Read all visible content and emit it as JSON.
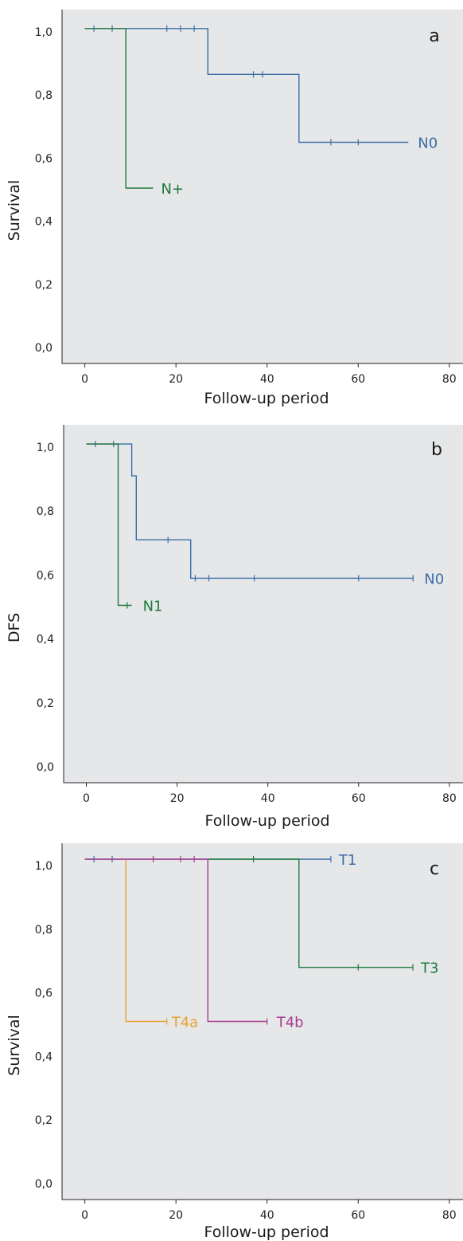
{
  "chart_data": [
    {
      "type": "line",
      "style": "kaplan-meier step",
      "panel_label": "a",
      "xlabel": "Follow-up period",
      "ylabel": "Survival",
      "xlim": [
        -5,
        83
      ],
      "ylim": [
        -0.05,
        1.07
      ],
      "xticks": [
        "0",
        "20",
        "40",
        "60",
        "80"
      ],
      "yticks": [
        "0,0",
        "0,2",
        "0,4",
        "0,6",
        "0,8",
        "1,0"
      ],
      "grid": false,
      "series": [
        {
          "name": "N0",
          "color": "#3a6ea5",
          "steps": [
            [
              0,
              1.01
            ],
            [
              27,
              1.01
            ],
            [
              27,
              0.865
            ],
            [
              47,
              0.865
            ],
            [
              47,
              0.65
            ],
            [
              71,
              0.65
            ]
          ],
          "censored": [
            [
              2,
              1.01
            ],
            [
              6,
              1.01
            ],
            [
              18,
              1.01
            ],
            [
              21,
              1.01
            ],
            [
              24,
              1.01
            ],
            [
              37,
              0.865
            ],
            [
              39,
              0.865
            ],
            [
              54,
              0.65
            ],
            [
              60,
              0.65
            ]
          ]
        },
        {
          "name": "N+",
          "color": "#1e7a3c",
          "steps": [
            [
              0,
              1.01
            ],
            [
              9,
              1.01
            ],
            [
              9,
              0.505
            ],
            [
              15,
              0.505
            ]
          ],
          "censored": []
        }
      ]
    },
    {
      "type": "line",
      "style": "kaplan-meier step",
      "panel_label": "b",
      "xlabel": "Follow-up period",
      "ylabel": "DFS",
      "xlim": [
        -5,
        83
      ],
      "ylim": [
        -0.05,
        1.07
      ],
      "xticks": [
        "0",
        "20",
        "40",
        "60",
        "80"
      ],
      "yticks": [
        "0,0",
        "0,2",
        "0,4",
        "0,6",
        "0,8",
        "1,0"
      ],
      "grid": false,
      "series": [
        {
          "name": "N0",
          "color": "#3a6ea5",
          "steps": [
            [
              0,
              1.01
            ],
            [
              10,
              1.01
            ],
            [
              10,
              0.91
            ],
            [
              11,
              0.91
            ],
            [
              11,
              0.71
            ],
            [
              23,
              0.71
            ],
            [
              23,
              0.59
            ],
            [
              72,
              0.59
            ]
          ],
          "censored": [
            [
              2,
              1.01
            ],
            [
              6,
              1.01
            ],
            [
              18,
              0.71
            ],
            [
              24,
              0.59
            ],
            [
              27,
              0.59
            ],
            [
              37,
              0.59
            ],
            [
              60,
              0.59
            ],
            [
              72,
              0.59
            ]
          ]
        },
        {
          "name": "N1",
          "color": "#1e7a3c",
          "steps": [
            [
              0,
              1.01
            ],
            [
              7,
              1.01
            ],
            [
              7,
              0.505
            ],
            [
              10,
              0.505
            ]
          ],
          "censored": [
            [
              9,
              0.505
            ]
          ]
        }
      ]
    },
    {
      "type": "line",
      "style": "kaplan-meier step",
      "panel_label": "c",
      "xlabel": "Follow-up period",
      "ylabel": "Survival",
      "xlim": [
        -5,
        83
      ],
      "ylim": [
        -0.05,
        1.07
      ],
      "xticks": [
        "0",
        "20",
        "40",
        "60",
        "80"
      ],
      "yticks": [
        "0,0",
        "0,2",
        "0,4",
        "0,6",
        "0,8",
        "1,0"
      ],
      "grid": false,
      "series": [
        {
          "name": "T1",
          "color": "#3a6ea5",
          "steps": [
            [
              0,
              1.02
            ],
            [
              54,
              1.02
            ]
          ],
          "censored": [
            [
              2,
              1.02
            ],
            [
              6,
              1.02
            ],
            [
              54,
              1.02
            ]
          ]
        },
        {
          "name": "T3",
          "color": "#1e7a3c",
          "steps": [
            [
              27,
              1.02
            ],
            [
              47,
              1.02
            ],
            [
              47,
              0.68
            ],
            [
              72,
              0.68
            ]
          ],
          "censored": [
            [
              37,
              1.02
            ],
            [
              60,
              0.68
            ],
            [
              72,
              0.68
            ]
          ]
        },
        {
          "name": "T4a",
          "color": "#e8a030",
          "steps": [
            [
              9,
              1.02
            ],
            [
              9,
              0.51
            ],
            [
              18,
              0.51
            ]
          ],
          "censored": [
            [
              18,
              0.51
            ]
          ]
        },
        {
          "name": "T4b",
          "color": "#a63c8f",
          "steps": [
            [
              0,
              1.02
            ],
            [
              27,
              1.02
            ],
            [
              27,
              0.51
            ],
            [
              40,
              0.51
            ]
          ],
          "censored": [
            [
              15,
              1.02
            ],
            [
              21,
              1.02
            ],
            [
              24,
              1.02
            ],
            [
              40,
              0.51
            ]
          ]
        }
      ]
    }
  ]
}
